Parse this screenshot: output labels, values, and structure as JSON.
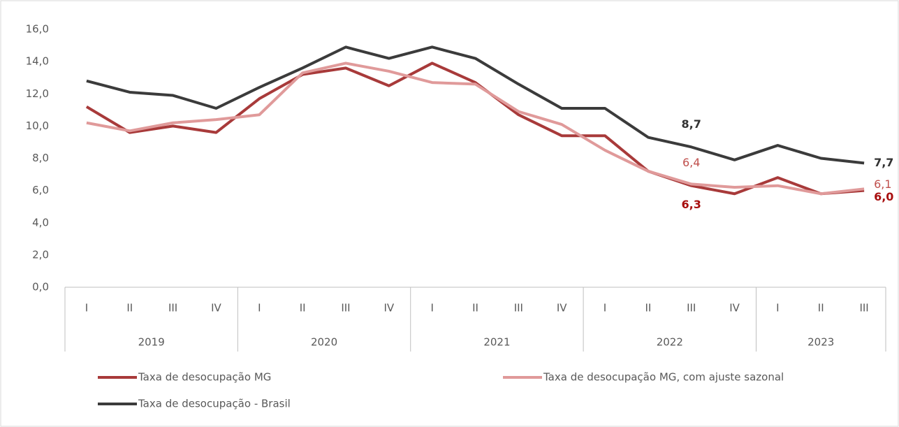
{
  "chart_data": {
    "type": "line",
    "groups": [
      {
        "name": "2019",
        "categories": [
          "I",
          "II",
          "III",
          "IV"
        ]
      },
      {
        "name": "2020",
        "categories": [
          "I",
          "II",
          "III",
          "IV"
        ]
      },
      {
        "name": "2021",
        "categories": [
          "I",
          "II",
          "III",
          "IV"
        ]
      },
      {
        "name": "2022",
        "categories": [
          "I",
          "II",
          "III",
          "IV"
        ]
      },
      {
        "name": "2023",
        "categories": [
          "I",
          "II",
          "III"
        ]
      }
    ],
    "series": [
      {
        "name": "Taxa de desocupação MG",
        "color": "#a83a3a",
        "label_color": "#a80f0f",
        "label_bold": true,
        "values": [
          11.2,
          9.6,
          10.0,
          9.6,
          11.7,
          13.2,
          13.6,
          12.5,
          13.9,
          12.7,
          10.7,
          9.4,
          9.4,
          7.2,
          6.3,
          5.8,
          6.8,
          5.8,
          6.0
        ],
        "value_labels": [
          null,
          null,
          null,
          null,
          null,
          null,
          null,
          null,
          null,
          null,
          null,
          null,
          null,
          null,
          "6,3",
          null,
          null,
          null,
          "6,0"
        ]
      },
      {
        "name": "Taxa de desocupação MG, com ajuste sazonal",
        "color": "#e09a9a",
        "label_color": "#c0504d",
        "label_bold": false,
        "values": [
          10.2,
          9.7,
          10.2,
          10.4,
          10.7,
          13.3,
          13.9,
          13.4,
          12.7,
          12.6,
          10.9,
          10.1,
          8.5,
          7.2,
          6.4,
          6.2,
          6.3,
          5.8,
          6.1
        ],
        "value_labels": [
          null,
          null,
          null,
          null,
          null,
          null,
          null,
          null,
          null,
          null,
          null,
          null,
          null,
          null,
          "6,4",
          null,
          null,
          null,
          "6,1"
        ]
      },
      {
        "name": "Taxa de desocupação - Brasil",
        "color": "#3b3b3b",
        "label_color": "#333333",
        "label_bold": true,
        "values": [
          12.8,
          12.1,
          11.9,
          11.1,
          12.4,
          13.6,
          14.9,
          14.2,
          14.9,
          14.2,
          12.6,
          11.1,
          11.1,
          9.3,
          8.7,
          7.9,
          8.8,
          8.0,
          7.7
        ],
        "value_labels": [
          null,
          null,
          null,
          null,
          null,
          null,
          null,
          null,
          null,
          null,
          null,
          null,
          null,
          null,
          "8,7",
          null,
          null,
          null,
          "7,7"
        ]
      }
    ],
    "ylim": [
      0,
      16
    ],
    "yticks": [
      {
        "value": 0,
        "label": "0,0"
      },
      {
        "value": 2,
        "label": "2,0"
      },
      {
        "value": 4,
        "label": "4,0"
      },
      {
        "value": 6,
        "label": "6,0"
      },
      {
        "value": 8,
        "label": "8,0"
      },
      {
        "value": 10,
        "label": "10,0"
      },
      {
        "value": 12,
        "label": "12,0"
      },
      {
        "value": 14,
        "label": "14,0"
      },
      {
        "value": 16,
        "label": "16,0"
      }
    ],
    "grid": false
  }
}
